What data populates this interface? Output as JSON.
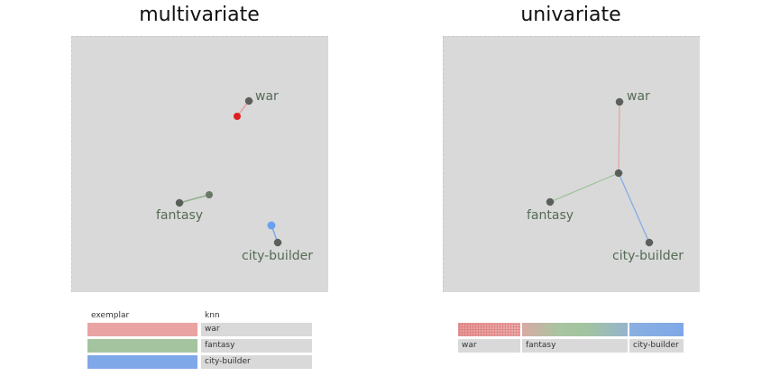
{
  "panels": [
    {
      "title": "multivariate",
      "nodes": [
        {
          "label": "war"
        },
        {
          "label": "fantasy"
        },
        {
          "label": "city-builder"
        }
      ]
    },
    {
      "title": "univariate",
      "nodes": [
        {
          "label": "war"
        },
        {
          "label": "fantasy"
        },
        {
          "label": "city-builder"
        }
      ]
    }
  ],
  "legend_multivariate": {
    "col_exemplar": "exemplar",
    "col_knn": "knn",
    "rows": [
      {
        "label": "war",
        "color": "#eaa3a3"
      },
      {
        "label": "fantasy",
        "color": "#a3c49f"
      },
      {
        "label": "city-builder",
        "color": "#7fa8e8"
      }
    ]
  },
  "legend_univariate": {
    "items": [
      {
        "label": "war"
      },
      {
        "label": "fantasy"
      },
      {
        "label": "city-builder"
      }
    ]
  },
  "colors": {
    "war": "#e03030",
    "war_light": "#eaa3a3",
    "fantasy": "#6d8a6a",
    "fantasy_light": "#a3c49f",
    "city_builder": "#6aa0f0",
    "city_builder_light": "#7fa8e8",
    "node": "#5c665c",
    "panel_bg": "#d9d9d9"
  }
}
